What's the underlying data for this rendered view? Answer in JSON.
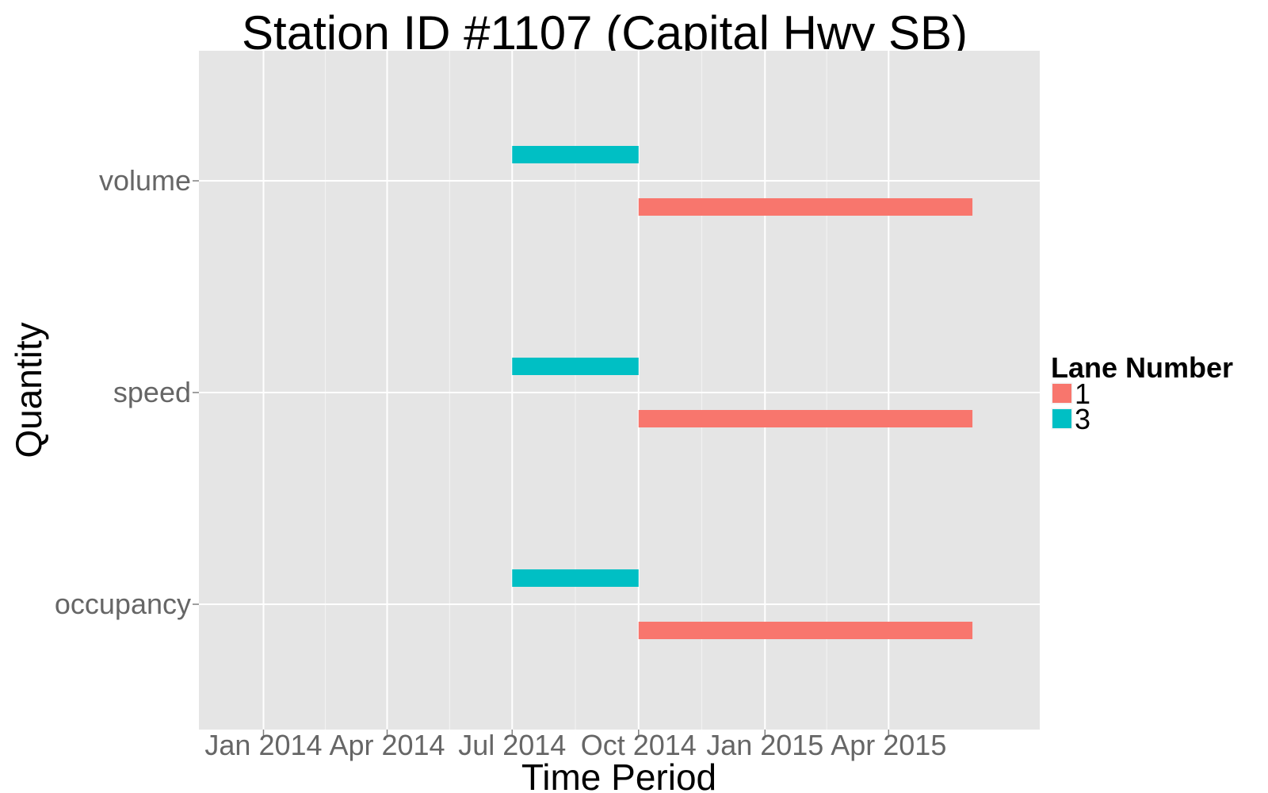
{
  "chart_data": {
    "type": "bar",
    "orientation": "horizontal-ranges",
    "title": "Station ID #1107 (Capital Hwy SB)",
    "xlabel": "Time Period",
    "ylabel": "Quantity",
    "x_type": "date",
    "xlim": [
      "2013-11-15",
      "2015-07-20"
    ],
    "x_ticks": [
      {
        "date": "2014-01-01",
        "label": "Jan 2014"
      },
      {
        "date": "2014-04-01",
        "label": "Apr 2014"
      },
      {
        "date": "2014-07-01",
        "label": "Jul 2014"
      },
      {
        "date": "2014-10-01",
        "label": "Oct 2014"
      },
      {
        "date": "2015-01-01",
        "label": "Jan 2015"
      },
      {
        "date": "2015-04-01",
        "label": "Apr 2015"
      }
    ],
    "categories": [
      "volume",
      "speed",
      "occupancy"
    ],
    "grid": true,
    "legend": {
      "title": "Lane Number",
      "position": "right",
      "entries": [
        {
          "label": "1",
          "color": "#F8766D"
        },
        {
          "label": "3",
          "color": "#00BFC4"
        }
      ]
    },
    "series": [
      {
        "name": "1",
        "color": "#F8766D",
        "segments": [
          {
            "category": "volume",
            "start": "2014-10-01",
            "end": "2015-06-01"
          },
          {
            "category": "speed",
            "start": "2014-10-01",
            "end": "2015-06-01"
          },
          {
            "category": "occupancy",
            "start": "2014-10-01",
            "end": "2015-06-01"
          }
        ]
      },
      {
        "name": "3",
        "color": "#00BFC4",
        "segments": [
          {
            "category": "volume",
            "start": "2014-07-01",
            "end": "2014-10-01"
          },
          {
            "category": "speed",
            "start": "2014-07-01",
            "end": "2014-10-01"
          },
          {
            "category": "occupancy",
            "start": "2014-07-01",
            "end": "2014-10-01"
          }
        ]
      }
    ]
  }
}
